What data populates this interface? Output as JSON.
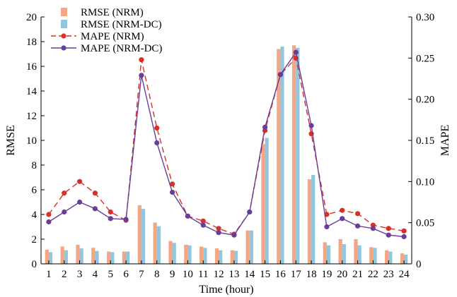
{
  "chart_data": {
    "type": "bar",
    "title": "",
    "xlabel": "Time (hour)",
    "ylabel": "RMSE",
    "y2label": "MAPE",
    "ylim": [
      0,
      20
    ],
    "y2lim": [
      0,
      0.3
    ],
    "yticks": [
      "0",
      "2",
      "4",
      "6",
      "8",
      "10",
      "12",
      "14",
      "16",
      "18",
      "20"
    ],
    "y2ticks": [
      "0",
      "0.05",
      "0.10",
      "0.15",
      "0.20",
      "0.25",
      "0.30"
    ],
    "categories": [
      "1",
      "2",
      "3",
      "4",
      "5",
      "6",
      "7",
      "8",
      "9",
      "10",
      "11",
      "12",
      "13",
      "14",
      "15",
      "16",
      "17",
      "18",
      "19",
      "20",
      "21",
      "22",
      "23",
      "24"
    ],
    "grid": false,
    "legend_position": "top-left",
    "series": [
      {
        "name": "RMSE (NRM)",
        "kind": "bar",
        "axis": "left",
        "color": "#f4a582",
        "values": [
          1.15,
          1.4,
          1.55,
          1.3,
          1.0,
          1.0,
          4.75,
          3.35,
          1.85,
          1.55,
          1.4,
          1.25,
          1.1,
          2.7,
          9.7,
          17.4,
          17.7,
          6.85,
          1.75,
          2.0,
          2.0,
          1.35,
          1.1,
          0.85
        ]
      },
      {
        "name": "RMSE (NRM-DC)",
        "kind": "bar",
        "axis": "left",
        "color": "#92c5de",
        "values": [
          0.95,
          1.1,
          1.25,
          1.05,
          0.95,
          1.0,
          4.45,
          3.05,
          1.7,
          1.5,
          1.3,
          1.1,
          1.05,
          2.7,
          10.2,
          17.6,
          17.5,
          7.2,
          1.5,
          1.6,
          1.5,
          1.3,
          1.0,
          0.75
        ]
      },
      {
        "name": "MAPE (NRM)",
        "kind": "line",
        "dashed": true,
        "axis": "right",
        "color": "#d73027",
        "values": [
          0.06,
          0.086,
          0.1,
          0.086,
          0.063,
          0.053,
          0.248,
          0.165,
          0.097,
          0.058,
          0.052,
          0.043,
          0.036,
          0.063,
          0.162,
          0.23,
          0.25,
          0.158,
          0.06,
          0.065,
          0.061,
          0.047,
          0.043,
          0.04
        ]
      },
      {
        "name": "MAPE (NRM-DC)",
        "kind": "line",
        "dashed": false,
        "axis": "right",
        "color": "#6a3d9a",
        "values": [
          0.051,
          0.063,
          0.075,
          0.067,
          0.055,
          0.054,
          0.229,
          0.147,
          0.087,
          0.058,
          0.047,
          0.038,
          0.035,
          0.063,
          0.166,
          0.23,
          0.257,
          0.168,
          0.045,
          0.055,
          0.046,
          0.043,
          0.035,
          0.033
        ]
      }
    ]
  }
}
